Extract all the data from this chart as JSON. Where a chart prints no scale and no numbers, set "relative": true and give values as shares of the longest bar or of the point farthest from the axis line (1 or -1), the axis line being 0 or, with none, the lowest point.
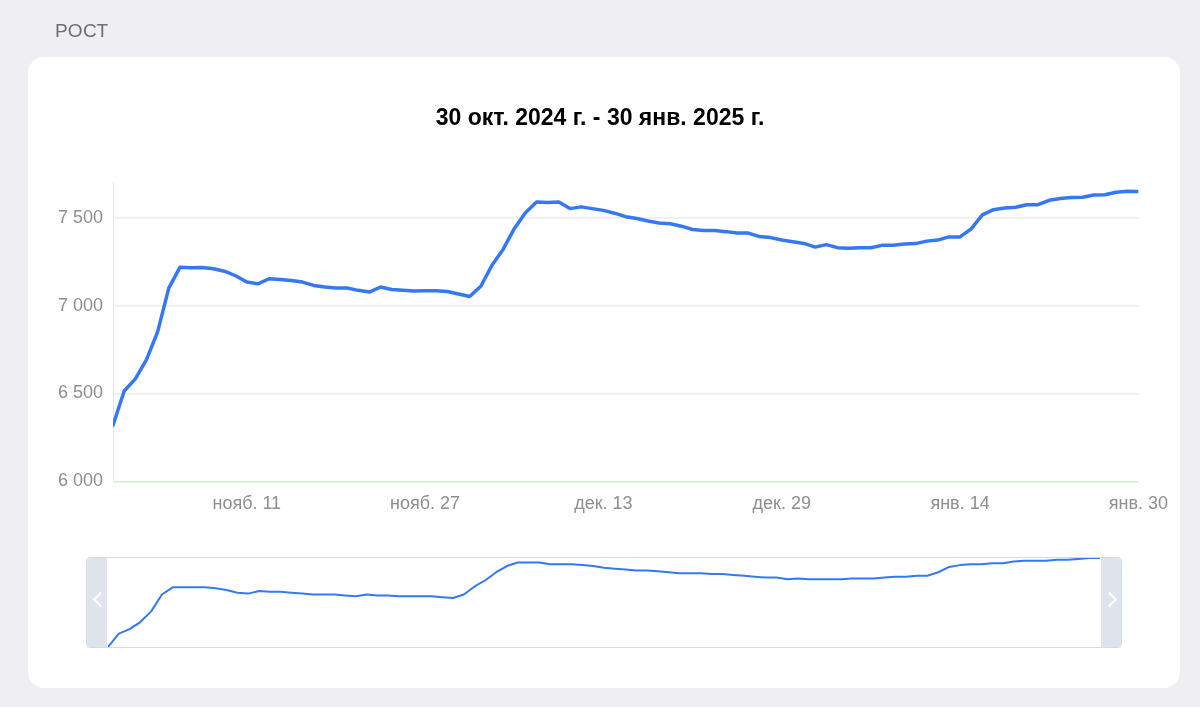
{
  "chart_data": [
    {
      "type": "line",
      "title": "30 окт. 2024 г. - 30 янв. 2025 г.",
      "annotations": [
        "РОСТ"
      ],
      "x": [
        "2024-10-30",
        "2024-10-31",
        "2024-11-01",
        "2024-11-02",
        "2024-11-03",
        "2024-11-04",
        "2024-11-05",
        "2024-11-06",
        "2024-11-07",
        "2024-11-08",
        "2024-11-09",
        "2024-11-10",
        "2024-11-11",
        "2024-11-12",
        "2024-11-13",
        "2024-11-14",
        "2024-11-15",
        "2024-11-16",
        "2024-11-17",
        "2024-11-18",
        "2024-11-19",
        "2024-11-20",
        "2024-11-21",
        "2024-11-22",
        "2024-11-23",
        "2024-11-24",
        "2024-11-25",
        "2024-11-26",
        "2024-11-27",
        "2024-11-28",
        "2024-11-29",
        "2024-11-30",
        "2024-12-01",
        "2024-12-02",
        "2024-12-03",
        "2024-12-04",
        "2024-12-05",
        "2024-12-06",
        "2024-12-07",
        "2024-12-08",
        "2024-12-09",
        "2024-12-10",
        "2024-12-11",
        "2024-12-12",
        "2024-12-13",
        "2024-12-14",
        "2024-12-15",
        "2024-12-16",
        "2024-12-17",
        "2024-12-18",
        "2024-12-19",
        "2024-12-20",
        "2024-12-21",
        "2024-12-22",
        "2024-12-23",
        "2024-12-24",
        "2024-12-25",
        "2024-12-26",
        "2024-12-27",
        "2024-12-28",
        "2024-12-29",
        "2024-12-30",
        "2024-12-31",
        "2025-01-01",
        "2025-01-02",
        "2025-01-03",
        "2025-01-04",
        "2025-01-05",
        "2025-01-06",
        "2025-01-07",
        "2025-01-08",
        "2025-01-09",
        "2025-01-10",
        "2025-01-11",
        "2025-01-12",
        "2025-01-13",
        "2025-01-14",
        "2025-01-15",
        "2025-01-16",
        "2025-01-17",
        "2025-01-18",
        "2025-01-19",
        "2025-01-20",
        "2025-01-21",
        "2025-01-22",
        "2025-01-23",
        "2025-01-24",
        "2025-01-25",
        "2025-01-26",
        "2025-01-27",
        "2025-01-28",
        "2025-01-29",
        "2025-01-30"
      ],
      "series": [
        {
          "color": "#3478f6",
          "values": [
            6320,
            6514,
            6583,
            6693,
            6851,
            7100,
            7218,
            7215,
            7217,
            7210,
            7196,
            7170,
            7134,
            7124,
            7153,
            7149,
            7143,
            7134,
            7115,
            7106,
            7100,
            7100,
            7087,
            7077,
            7106,
            7092,
            7087,
            7083,
            7084,
            7084,
            7080,
            7066,
            7052,
            7110,
            7230,
            7320,
            7438,
            7528,
            7589,
            7587,
            7589,
            7552,
            7562,
            7552,
            7542,
            7526,
            7506,
            7496,
            7482,
            7470,
            7466,
            7452,
            7433,
            7427,
            7427,
            7421,
            7413,
            7413,
            7393,
            7387,
            7373,
            7363,
            7354,
            7333,
            7347,
            7330,
            7327,
            7330,
            7329,
            7343,
            7343,
            7351,
            7353,
            7367,
            7373,
            7391,
            7391,
            7437,
            7516,
            7546,
            7556,
            7560,
            7574,
            7574,
            7599,
            7609,
            7615,
            7617,
            7629,
            7631,
            7645,
            7651,
            7649
          ]
        }
      ],
      "xlim": [
        "2024-10-30",
        "2025-01-30"
      ],
      "xticks": [
        {
          "value": "2024-11-11",
          "label": "нояб. 11"
        },
        {
          "value": "2024-11-27",
          "label": "нояб. 27"
        },
        {
          "value": "2024-12-13",
          "label": "дек. 13"
        },
        {
          "value": "2024-12-29",
          "label": "дек. 29"
        },
        {
          "value": "2025-01-14",
          "label": "янв. 14"
        },
        {
          "value": "2025-01-30",
          "label": "янв. 30"
        }
      ],
      "yticks": [
        {
          "value": 6000,
          "label": "6 000"
        },
        {
          "value": 6500,
          "label": "6 500"
        },
        {
          "value": 7000,
          "label": "7 000"
        },
        {
          "value": 7500,
          "label": "7 500"
        }
      ],
      "ylim": [
        6000,
        7700
      ],
      "grid": "y",
      "marker": "none",
      "line_style": "solid",
      "legend": false
    },
    {
      "type": "line",
      "relative": true,
      "tick_labels": false,
      "marker": "none",
      "legend": false,
      "categories": [
        null,
        null,
        null,
        null,
        null,
        null,
        null,
        null,
        null,
        null,
        null,
        null,
        null,
        null,
        null,
        null,
        null,
        null,
        null,
        null,
        null,
        null,
        null,
        null,
        null,
        null,
        null,
        null,
        null,
        null,
        null,
        null,
        null,
        null,
        null,
        null,
        null,
        null,
        null,
        null,
        null,
        null,
        null,
        null,
        null,
        null,
        null,
        null,
        null,
        null,
        null,
        null,
        null,
        null,
        null,
        null,
        null,
        null,
        null,
        null,
        null,
        null,
        null,
        null,
        null,
        null,
        null,
        null,
        null,
        null,
        null,
        null,
        null,
        null,
        null,
        null,
        null,
        null,
        null,
        null,
        null,
        null,
        null,
        null,
        null,
        null,
        null,
        null,
        null,
        null,
        null,
        null,
        null
      ],
      "series": [
        {
          "color": "#3478f6",
          "values": [
            0,
            0.15,
            0.2,
            0.28,
            0.4,
            0.59,
            0.67,
            0.67,
            0.67,
            0.67,
            0.66,
            0.64,
            0.61,
            0.6,
            0.63,
            0.62,
            0.62,
            0.61,
            0.6,
            0.59,
            0.59,
            0.59,
            0.58,
            0.57,
            0.59,
            0.58,
            0.58,
            0.57,
            0.57,
            0.57,
            0.57,
            0.56,
            0.55,
            0.59,
            0.68,
            0.75,
            0.84,
            0.91,
            0.95,
            0.95,
            0.95,
            0.93,
            0.93,
            0.93,
            0.92,
            0.91,
            0.89,
            0.88,
            0.87,
            0.86,
            0.86,
            0.85,
            0.84,
            0.83,
            0.83,
            0.83,
            0.82,
            0.82,
            0.81,
            0.8,
            0.79,
            0.78,
            0.78,
            0.76,
            0.77,
            0.76,
            0.76,
            0.76,
            0.76,
            0.77,
            0.77,
            0.77,
            0.78,
            0.79,
            0.79,
            0.8,
            0.8,
            0.84,
            0.9,
            0.92,
            0.93,
            0.93,
            0.94,
            0.94,
            0.96,
            0.97,
            0.97,
            0.97,
            0.98,
            0.98,
            0.99,
            1,
            1
          ]
        }
      ]
    }
  ]
}
